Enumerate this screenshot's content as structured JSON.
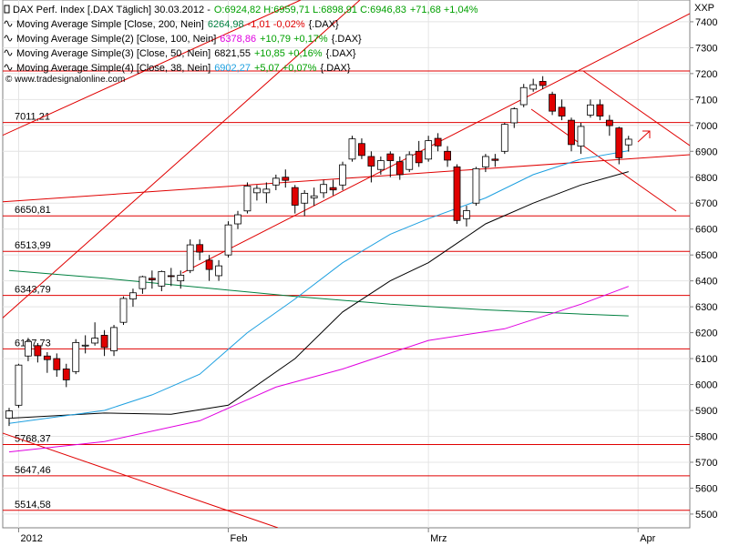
{
  "chart_data": {
    "type": "candlestick",
    "header": {
      "title": "DAX Perf. Index [.DAX  Täglich] 30.03.2012 -",
      "quote": "O:6924,82 H:6959,71 L:6898,91 C:6946,83",
      "change": "+71,68 +1,04%",
      "change_color": "#00a000"
    },
    "watermark": "© www.tradesignalonline.com",
    "y_axis_label": "XXP",
    "ylim": [
      5447,
      7484
    ],
    "yticks": [
      5500,
      5600,
      5700,
      5800,
      5900,
      6000,
      6100,
      6200,
      6300,
      6400,
      6500,
      6600,
      6700,
      6800,
      6900,
      7000,
      7100,
      7200,
      7300,
      7400
    ],
    "xlim": [
      -0.67,
      71.43
    ],
    "xticks": [
      {
        "value": 1,
        "label": "2012"
      },
      {
        "value": 23,
        "label": "Feb"
      },
      {
        "value": 44,
        "label": "Mrz"
      },
      {
        "value": 66,
        "label": "Apr"
      }
    ],
    "grid": true,
    "up_color": "#ffffff",
    "down_color": "#e00000",
    "level_color": "#e00000",
    "open": [
      5870,
      5920,
      6110,
      6150,
      6110,
      6100,
      6060,
      6050,
      6150,
      6160,
      6190,
      6130,
      6240,
      6330,
      6370,
      6410,
      6380,
      6420,
      6400,
      6440,
      6540,
      6480,
      6420,
      6500,
      6620,
      6670,
      6740,
      6740,
      6770,
      6800,
      6760,
      6700,
      6720,
      6740,
      6760,
      6770,
      6870,
      6930,
      6880,
      6830,
      6890,
      6860,
      6830,
      6900,
      6870,
      6950,
      6900,
      6840,
      6640,
      6700,
      6840,
      6870,
      6900,
      7010,
      7080,
      7140,
      7170,
      7120,
      7070,
      7020,
      6920,
      7040,
      7080,
      7020,
      6990,
      6924.82
    ],
    "high": [
      5910,
      6080,
      6180,
      6160,
      6125,
      6120,
      6080,
      6175,
      6190,
      6240,
      6210,
      6230,
      6340,
      6370,
      6420,
      6440,
      6440,
      6450,
      6440,
      6560,
      6560,
      6500,
      6480,
      6630,
      6670,
      6780,
      6770,
      6780,
      6810,
      6830,
      6770,
      6750,
      6760,
      6790,
      6790,
      6860,
      6960,
      6950,
      6900,
      6880,
      6900,
      6880,
      6900,
      6940,
      6960,
      6970,
      6920,
      6850,
      6690,
      6840,
      6890,
      6890,
      7010,
      7070,
      7160,
      7180,
      7190,
      7130,
      7100,
      7030,
      7010,
      7100,
      7100,
      7040,
      6995,
      6959.71
    ],
    "low": [
      5840,
      5910,
      6090,
      6085,
      6045,
      6030,
      5990,
      6040,
      6120,
      6150,
      6110,
      6110,
      6230,
      6300,
      6350,
      6370,
      6360,
      6380,
      6370,
      6430,
      6480,
      6400,
      6400,
      6490,
      6600,
      6660,
      6710,
      6700,
      6750,
      6760,
      6660,
      6650,
      6690,
      6720,
      6730,
      6750,
      6860,
      6870,
      6780,
      6810,
      6800,
      6790,
      6820,
      6840,
      6860,
      6900,
      6840,
      6620,
      6610,
      6690,
      6820,
      6840,
      6890,
      6990,
      7070,
      7130,
      7140,
      7040,
      7020,
      6900,
      6890,
      7030,
      7020,
      6960,
      6850,
      6898.91
    ],
    "close": [
      5898,
      6075,
      6166,
      6111,
      6096,
      6057,
      6018,
      6162,
      6152,
      6179,
      6143,
      6220,
      6332,
      6354,
      6416,
      6404,
      6436,
      6419,
      6422,
      6539,
      6511,
      6444,
      6458,
      6616,
      6655,
      6766,
      6757,
      6754,
      6796,
      6788,
      6692,
      6738,
      6728,
      6772,
      6751,
      6848,
      6948,
      6884,
      6843,
      6864,
      6864,
      6810,
      6887,
      6856,
      6941,
      6921,
      6866,
      6633,
      6671,
      6833,
      6880,
      6865,
      7004,
      7064,
      7146,
      7157,
      7154,
      7055,
      7036,
      6926,
      6996,
      7079,
      7036,
      6999,
      6875,
      6946.83
    ],
    "series": [
      {
        "name": "Moving Average Simple [Close, 200, Nein]",
        "color": "#008040",
        "last_label": "6264,98",
        "change": "-1,01 -0,02%",
        "change_color": "#e00000",
        "source": "{.DAX}",
        "x": [
          0,
          10,
          20,
          30,
          40,
          50,
          60,
          65
        ],
        "values": [
          6440,
          6410,
          6375,
          6340,
          6310,
          6288,
          6272,
          6264.98
        ]
      },
      {
        "name": "Moving Average Simple(2) [Close, 100, Nein]",
        "color": "#e000e0",
        "last_label": "6378,86",
        "change": "+10,79 +0,17%",
        "change_color": "#00a000",
        "source": "{.DAX}",
        "x": [
          0,
          10,
          20,
          28,
          35,
          44,
          52,
          60,
          65
        ],
        "values": [
          5740,
          5780,
          5860,
          5990,
          6060,
          6170,
          6215,
          6310,
          6378.86
        ]
      },
      {
        "name": "Moving Average Simple(3) [Close, 50, Nein]",
        "color": "#000000",
        "last_label": "6821,55",
        "change": "+10,85 +0,16%",
        "change_color": "#00a000",
        "source": "{.DAX}",
        "x": [
          0,
          10,
          17,
          23,
          30,
          35,
          40,
          44,
          50,
          55,
          60,
          65
        ],
        "values": [
          5870,
          5890,
          5885,
          5920,
          6100,
          6280,
          6400,
          6470,
          6620,
          6700,
          6770,
          6821.55
        ]
      },
      {
        "name": "Moving Average Simple(4) [Close, 38, Nein]",
        "color": "#1ea0e0",
        "last_label": "6902,27",
        "change": "+5,07 +0,07%",
        "change_color": "#00a000",
        "source": "{.DAX}",
        "x": [
          0,
          10,
          15,
          20,
          25,
          30,
          35,
          40,
          44,
          50,
          55,
          60,
          65
        ],
        "values": [
          5850,
          5900,
          5960,
          6040,
          6200,
          6330,
          6470,
          6580,
          6640,
          6720,
          6810,
          6870,
          6902.27
        ]
      }
    ],
    "levels": [
      7210,
      {
        "value": 7011.21,
        "label": "7011,21"
      },
      {
        "value": 6650.81,
        "label": "6650,81"
      },
      {
        "value": 6513.99,
        "label": "6513,99"
      },
      {
        "value": 6343.79,
        "label": "6343,79"
      },
      {
        "value": 6137.73,
        "label": "6137,73"
      },
      {
        "value": 5768.37,
        "label": "5768,37"
      },
      {
        "value": 5647.46,
        "label": "5647,46"
      },
      {
        "value": 5514.58,
        "label": "5514,58"
      }
    ]
  }
}
